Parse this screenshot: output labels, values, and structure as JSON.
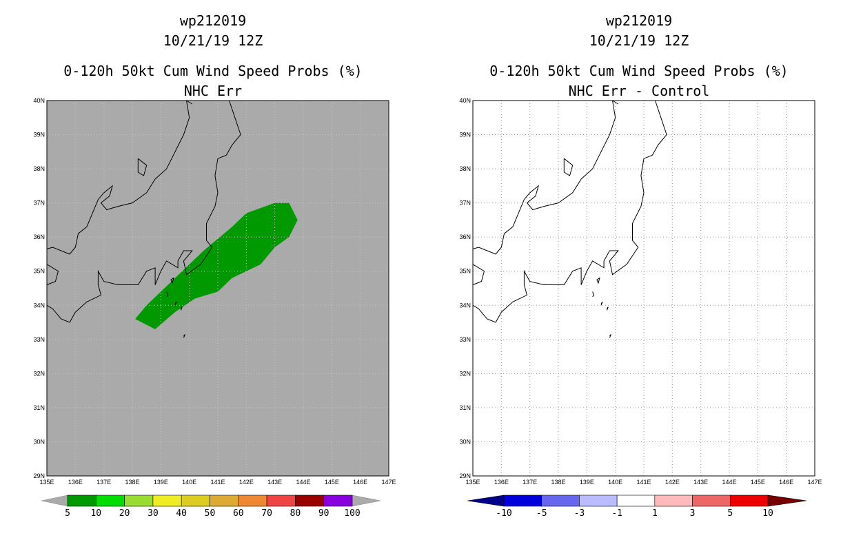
{
  "colors": {
    "map_bg_left": "#aaaaaa",
    "map_bg_right": "#ffffff",
    "prob_fill": "#009900",
    "coast": "#000000",
    "grid": "#999999"
  },
  "panels": [
    {
      "id": "left",
      "title_line1": "wp212019",
      "title_line2": "10/21/19 12Z",
      "title_line3": "0-120h 50kt Cum Wind Speed Probs (%)",
      "title_line4": "NHC Err",
      "colorbar_labels": [
        "5",
        "10",
        "20",
        "30",
        "40",
        "50",
        "60",
        "70",
        "80",
        "90",
        "100"
      ],
      "colorbar_colors": [
        "#009900",
        "#00dd00",
        "#99dd33",
        "#eeee22",
        "#ddcc22",
        "#ddaa33",
        "#ee8833",
        "#ee4444",
        "#990000",
        "#8800dd"
      ]
    },
    {
      "id": "right",
      "title_line1": "wp212019",
      "title_line2": "10/21/19 12Z",
      "title_line3": "0-120h 50kt Cum Wind Speed Probs (%)",
      "title_line4": "NHC Err - Control",
      "colorbar_labels": [
        "-10",
        "-5",
        "-3",
        "-1",
        "1",
        "3",
        "5",
        "10"
      ],
      "colorbar_colors": [
        "#0000dd",
        "#6666ee",
        "#bbbbff",
        "#ffffff",
        "#ffbbbb",
        "#ee6666",
        "#ee0000"
      ],
      "colorbar_low_end": "#000088",
      "colorbar_high_end": "#770000"
    }
  ],
  "map": {
    "lat_labels": [
      "40N",
      "39N",
      "38N",
      "37N",
      "36N",
      "35N",
      "34N",
      "33N",
      "32N",
      "31N",
      "30N",
      "29N"
    ],
    "lon_labels": [
      "135E",
      "136E",
      "137E",
      "138E",
      "139E",
      "140E",
      "141E",
      "142E",
      "143E",
      "144E",
      "145E",
      "146E",
      "147E"
    ],
    "lat_range": [
      29,
      40
    ],
    "lon_range": [
      135,
      147
    ]
  },
  "probability_region": {
    "value_band": "5-10",
    "polygon_lonlat": [
      [
        138.5,
        34.0
      ],
      [
        139.5,
        34.8
      ],
      [
        140.5,
        35.6
      ],
      [
        141.5,
        36.3
      ],
      [
        142.0,
        36.7
      ],
      [
        143.0,
        37.0
      ],
      [
        143.5,
        37.0
      ],
      [
        143.8,
        36.5
      ],
      [
        143.5,
        36.0
      ],
      [
        143.0,
        35.7
      ],
      [
        142.5,
        35.2
      ],
      [
        141.5,
        34.8
      ],
      [
        141.0,
        34.4
      ],
      [
        140.2,
        34.2
      ],
      [
        139.5,
        33.8
      ],
      [
        138.8,
        33.3
      ],
      [
        138.1,
        33.6
      ]
    ]
  },
  "coastline": [
    [
      [
        135.0,
        35.65
      ],
      [
        135.2,
        35.7
      ],
      [
        135.5,
        35.6
      ],
      [
        135.8,
        35.5
      ],
      [
        136.0,
        35.7
      ],
      [
        136.1,
        36.1
      ],
      [
        136.4,
        36.3
      ],
      [
        136.7,
        36.9
      ],
      [
        136.8,
        37.1
      ],
      [
        137.0,
        37.3
      ],
      [
        137.3,
        37.5
      ],
      [
        137.2,
        37.2
      ],
      [
        136.9,
        37.0
      ],
      [
        137.1,
        36.8
      ],
      [
        137.5,
        36.9
      ],
      [
        138.0,
        37.0
      ],
      [
        138.5,
        37.3
      ],
      [
        138.8,
        37.7
      ],
      [
        139.2,
        38.0
      ],
      [
        139.5,
        38.5
      ],
      [
        139.8,
        39.0
      ],
      [
        140.0,
        39.5
      ],
      [
        139.9,
        40.0
      ]
    ],
    [
      [
        139.9,
        40.0
      ],
      [
        140.1,
        39.9
      ]
    ],
    [
      [
        141.4,
        40.0
      ],
      [
        141.6,
        39.5
      ],
      [
        141.8,
        39.0
      ],
      [
        141.5,
        38.7
      ],
      [
        141.3,
        38.4
      ],
      [
        141.0,
        38.3
      ],
      [
        140.9,
        37.8
      ],
      [
        141.0,
        37.3
      ],
      [
        140.9,
        36.9
      ],
      [
        140.6,
        36.4
      ],
      [
        140.6,
        35.9
      ],
      [
        140.8,
        35.7
      ],
      [
        140.4,
        35.2
      ],
      [
        139.9,
        34.9
      ],
      [
        139.8,
        35.3
      ],
      [
        140.1,
        35.6
      ],
      [
        139.8,
        35.6
      ],
      [
        139.6,
        35.3
      ],
      [
        139.6,
        35.1
      ],
      [
        139.2,
        35.3
      ],
      [
        139.0,
        35.0
      ],
      [
        138.8,
        34.6
      ],
      [
        138.8,
        35.1
      ],
      [
        138.5,
        35.0
      ],
      [
        138.2,
        34.6
      ],
      [
        137.5,
        34.6
      ],
      [
        137.0,
        34.7
      ],
      [
        136.8,
        35.0
      ],
      [
        136.8,
        34.6
      ],
      [
        136.9,
        34.3
      ],
      [
        136.4,
        34.1
      ],
      [
        136.0,
        33.8
      ],
      [
        135.8,
        33.5
      ],
      [
        135.5,
        33.6
      ],
      [
        135.2,
        33.9
      ],
      [
        135.0,
        34.0
      ]
    ],
    [
      [
        135.0,
        34.6
      ],
      [
        135.3,
        34.7
      ],
      [
        135.4,
        35.0
      ],
      [
        135.0,
        35.2
      ]
    ],
    [
      [
        138.2,
        38.3
      ],
      [
        138.5,
        38.1
      ],
      [
        138.4,
        37.8
      ],
      [
        138.2,
        37.9
      ],
      [
        138.2,
        38.3
      ]
    ],
    [
      [
        139.35,
        34.75
      ],
      [
        139.45,
        34.8
      ],
      [
        139.4,
        34.65
      ],
      [
        139.35,
        34.75
      ]
    ],
    [
      [
        139.2,
        34.4
      ],
      [
        139.25,
        34.3
      ],
      [
        139.2,
        34.25
      ]
    ],
    [
      [
        139.5,
        34.05
      ],
      [
        139.55,
        34.1
      ],
      [
        139.5,
        34.0
      ]
    ],
    [
      [
        139.7,
        33.9
      ],
      [
        139.75,
        33.95
      ],
      [
        139.7,
        33.85
      ]
    ],
    [
      [
        139.8,
        33.1
      ],
      [
        139.85,
        33.15
      ],
      [
        139.8,
        33.05
      ]
    ]
  ]
}
